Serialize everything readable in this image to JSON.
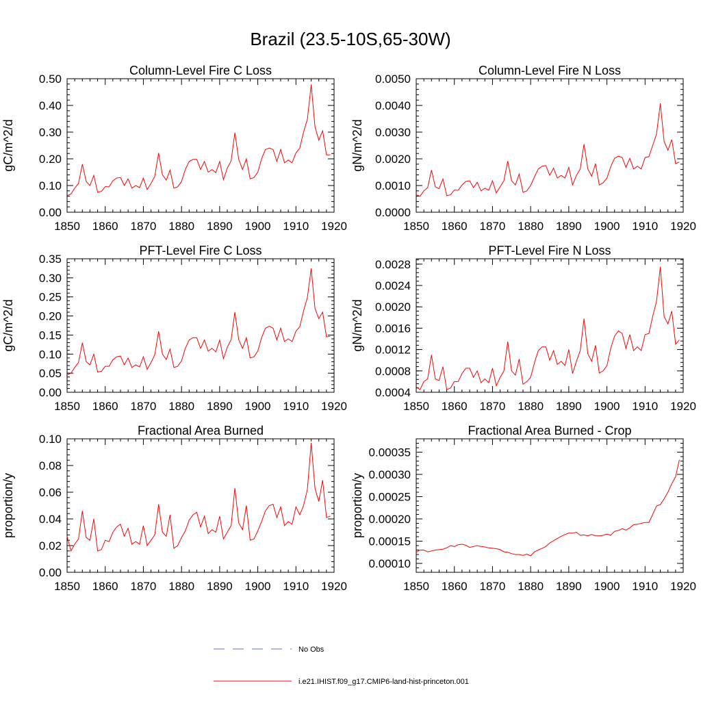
{
  "figure": {
    "title": "Brazil (23.5-10S,65-30W)",
    "series_color": "#ff0000",
    "obs_color": "#5b6fcf"
  },
  "legend": {
    "obs_label": "No Obs",
    "model_label": "i.e21.IHIST.f09_g17.CMIP6-land-hist-princeton.001"
  },
  "chart_data": [
    {
      "type": "line",
      "title": "Column-Level Fire C Loss",
      "ylabel": "gC/m^2/d",
      "xlim": [
        1850,
        1920
      ],
      "ylim": [
        0,
        0.5
      ],
      "x_ticks": [
        1850,
        1860,
        1870,
        1880,
        1890,
        1900,
        1910,
        1920
      ],
      "x_tick_labels": [
        "1850",
        "1860",
        "1870",
        "1880",
        "1890",
        "1900",
        "1910",
        "1920"
      ],
      "y_ticks": [
        0,
        0.1,
        0.2,
        0.3,
        0.4,
        0.5
      ],
      "y_tick_labels": [
        "0.00",
        "0.10",
        "0.20",
        "0.30",
        "0.40",
        "0.50"
      ],
      "series": [
        {
          "x0": 1850,
          "values": [
            0.062,
            0.068,
            0.09,
            0.108,
            0.18,
            0.115,
            0.1,
            0.138,
            0.075,
            0.078,
            0.096,
            0.095,
            0.118,
            0.128,
            0.13,
            0.1,
            0.125,
            0.09,
            0.1,
            0.092,
            0.128,
            0.085,
            0.108,
            0.135,
            0.222,
            0.14,
            0.12,
            0.158,
            0.09,
            0.095,
            0.115,
            0.16,
            0.19,
            0.198,
            0.198,
            0.16,
            0.19,
            0.15,
            0.16,
            0.148,
            0.19,
            0.122,
            0.165,
            0.192,
            0.298,
            0.198,
            0.16,
            0.2,
            0.125,
            0.13,
            0.15,
            0.2,
            0.235,
            0.24,
            0.235,
            0.19,
            0.235,
            0.185,
            0.195,
            0.185,
            0.222,
            0.24,
            0.3,
            0.348,
            0.478,
            0.32,
            0.27,
            0.305,
            0.215,
            0.215
          ]
        }
      ]
    },
    {
      "type": "line",
      "title": "Column-Level Fire N Loss",
      "ylabel": "gN/m^2/d",
      "xlim": [
        1850,
        1920
      ],
      "ylim": [
        0,
        0.005
      ],
      "x_ticks": [
        1850,
        1860,
        1870,
        1880,
        1890,
        1900,
        1910,
        1920
      ],
      "x_tick_labels": [
        "1850",
        "1860",
        "1870",
        "1880",
        "1890",
        "1900",
        "1910",
        "1920"
      ],
      "y_ticks": [
        0,
        0.001,
        0.002,
        0.003,
        0.004,
        0.005
      ],
      "y_tick_labels": [
        "0.0000",
        "0.0010",
        "0.0020",
        "0.0030",
        "0.0040",
        "0.0050"
      ],
      "series": [
        {
          "x0": 1850,
          "values": [
            0.00065,
            0.0006,
            0.0008,
            0.00092,
            0.00158,
            0.00095,
            0.00088,
            0.00125,
            0.00062,
            0.00065,
            0.00083,
            0.00082,
            0.00102,
            0.00115,
            0.00118,
            0.00092,
            0.00112,
            0.0008,
            0.0009,
            0.00082,
            0.00118,
            0.00072,
            0.00095,
            0.00118,
            0.00192,
            0.00118,
            0.00102,
            0.00143,
            0.00075,
            0.0008,
            0.001,
            0.00132,
            0.00162,
            0.00172,
            0.00175,
            0.00138,
            0.00165,
            0.00128,
            0.00138,
            0.00128,
            0.00168,
            0.00102,
            0.00138,
            0.00162,
            0.00255,
            0.00162,
            0.00135,
            0.00182,
            0.00102,
            0.0011,
            0.00128,
            0.0017,
            0.00202,
            0.0021,
            0.00205,
            0.00168,
            0.00202,
            0.00162,
            0.00172,
            0.00162,
            0.00205,
            0.00208,
            0.0025,
            0.00292,
            0.00408,
            0.00265,
            0.00232,
            0.00272,
            0.00182,
            0.00188
          ]
        }
      ]
    },
    {
      "type": "line",
      "title": "PFT-Level Fire C Loss",
      "ylabel": "gC/m^2/d",
      "xlim": [
        1850,
        1920
      ],
      "ylim": [
        0,
        0.35
      ],
      "x_ticks": [
        1850,
        1860,
        1870,
        1880,
        1890,
        1900,
        1910,
        1920
      ],
      "x_tick_labels": [
        "1850",
        "1860",
        "1870",
        "1880",
        "1890",
        "1900",
        "1910",
        "1920"
      ],
      "y_ticks": [
        0,
        0.05,
        0.1,
        0.15,
        0.2,
        0.25,
        0.3,
        0.35
      ],
      "y_tick_labels": [
        "0.00",
        "0.05",
        "0.10",
        "0.15",
        "0.20",
        "0.25",
        "0.30",
        "0.35"
      ],
      "series": [
        {
          "x0": 1850,
          "values": [
            0.045,
            0.05,
            0.065,
            0.078,
            0.13,
            0.08,
            0.072,
            0.1,
            0.053,
            0.055,
            0.068,
            0.068,
            0.085,
            0.093,
            0.095,
            0.072,
            0.09,
            0.065,
            0.072,
            0.066,
            0.093,
            0.06,
            0.078,
            0.098,
            0.16,
            0.1,
            0.086,
            0.113,
            0.065,
            0.068,
            0.082,
            0.115,
            0.137,
            0.143,
            0.143,
            0.115,
            0.137,
            0.108,
            0.115,
            0.106,
            0.137,
            0.088,
            0.118,
            0.138,
            0.21,
            0.138,
            0.115,
            0.143,
            0.09,
            0.093,
            0.108,
            0.143,
            0.168,
            0.173,
            0.168,
            0.137,
            0.168,
            0.133,
            0.14,
            0.133,
            0.16,
            0.172,
            0.213,
            0.248,
            0.325,
            0.22,
            0.193,
            0.21,
            0.145,
            0.147
          ]
        }
      ]
    },
    {
      "type": "line",
      "title": "PFT-Level Fire N Loss",
      "ylabel": "gN/m^2/d",
      "xlim": [
        1850,
        1920
      ],
      "ylim": [
        0.0004,
        0.0029
      ],
      "x_ticks": [
        1850,
        1860,
        1870,
        1880,
        1890,
        1900,
        1910,
        1920
      ],
      "x_tick_labels": [
        "1850",
        "1860",
        "1870",
        "1880",
        "1890",
        "1900",
        "1910",
        "1920"
      ],
      "y_ticks": [
        0.0004,
        0.0008,
        0.0012,
        0.0016,
        0.002,
        0.0024,
        0.0028
      ],
      "y_tick_labels": [
        "0.0004",
        "0.0008",
        "0.0012",
        "0.0016",
        "0.0020",
        "0.0024",
        "0.0028"
      ],
      "series": [
        {
          "x0": 1850,
          "values": [
            0.0005,
            0.00045,
            0.0006,
            0.00065,
            0.0011,
            0.00065,
            0.00062,
            0.00088,
            0.00045,
            0.00048,
            0.0006,
            0.0006,
            0.00075,
            0.00085,
            0.00085,
            0.00068,
            0.0008,
            0.00058,
            0.00065,
            0.00058,
            0.00085,
            0.00052,
            0.00068,
            0.0008,
            0.00135,
            0.0008,
            0.00072,
            0.00102,
            0.00055,
            0.0006,
            0.00068,
            0.00095,
            0.00118,
            0.00125,
            0.00125,
            0.001,
            0.00118,
            0.00092,
            0.00098,
            0.0009,
            0.0012,
            0.00075,
            0.00098,
            0.00118,
            0.00178,
            0.00112,
            0.00098,
            0.00128,
            0.00076,
            0.0008,
            0.0009,
            0.00122,
            0.00145,
            0.00155,
            0.0015,
            0.00122,
            0.00148,
            0.00118,
            0.00125,
            0.00118,
            0.00148,
            0.0015,
            0.00182,
            0.0021,
            0.00275,
            0.00182,
            0.00168,
            0.00192,
            0.0013,
            0.00138
          ]
        }
      ]
    },
    {
      "type": "line",
      "title": "Fractional Area Burned",
      "ylabel": "proportion/y",
      "xlim": [
        1850,
        1920
      ],
      "ylim": [
        0,
        0.1
      ],
      "x_ticks": [
        1850,
        1860,
        1870,
        1880,
        1890,
        1900,
        1910,
        1920
      ],
      "x_tick_labels": [
        "1850",
        "1860",
        "1870",
        "1880",
        "1890",
        "1900",
        "1910",
        "1920"
      ],
      "y_ticks": [
        0,
        0.02,
        0.04,
        0.06,
        0.08,
        0.1
      ],
      "y_tick_labels": [
        "0.00",
        "0.02",
        "0.04",
        "0.06",
        "0.08",
        "0.10"
      ],
      "series": [
        {
          "x0": 1850,
          "values": [
            0.027,
            0.016,
            0.021,
            0.025,
            0.046,
            0.026,
            0.024,
            0.04,
            0.016,
            0.017,
            0.024,
            0.023,
            0.03,
            0.034,
            0.036,
            0.027,
            0.033,
            0.021,
            0.023,
            0.021,
            0.035,
            0.02,
            0.024,
            0.028,
            0.051,
            0.03,
            0.027,
            0.043,
            0.018,
            0.02,
            0.026,
            0.031,
            0.039,
            0.043,
            0.045,
            0.034,
            0.042,
            0.029,
            0.032,
            0.03,
            0.042,
            0.025,
            0.03,
            0.035,
            0.063,
            0.037,
            0.032,
            0.05,
            0.024,
            0.025,
            0.031,
            0.038,
            0.046,
            0.05,
            0.051,
            0.041,
            0.049,
            0.035,
            0.038,
            0.036,
            0.049,
            0.043,
            0.05,
            0.062,
            0.097,
            0.063,
            0.053,
            0.069,
            0.041,
            0.042
          ]
        }
      ]
    },
    {
      "type": "line",
      "title": "Fractional Area Burned - Crop",
      "ylabel": "proportion/y",
      "xlim": [
        1850,
        1920
      ],
      "ylim": [
        8e-05,
        0.00038
      ],
      "x_ticks": [
        1850,
        1860,
        1870,
        1880,
        1890,
        1900,
        1910,
        1920
      ],
      "x_tick_labels": [
        "1850",
        "1860",
        "1870",
        "1880",
        "1890",
        "1900",
        "1910",
        "1920"
      ],
      "y_ticks": [
        0.0001,
        0.00015,
        0.0002,
        0.00025,
        0.0003,
        0.00035
      ],
      "y_tick_labels": [
        "0.00010",
        "0.00015",
        "0.00020",
        "0.00025",
        "0.00030",
        "0.00035"
      ],
      "series": [
        {
          "x0": 1850,
          "values": [
            0.000125,
            0.00013,
            0.00013,
            0.000126,
            0.000128,
            0.00013,
            0.000131,
            0.000132,
            0.000135,
            0.00014,
            0.000138,
            0.000142,
            0.000143,
            0.000141,
            0.000136,
            0.000138,
            0.00014,
            0.000138,
            0.000137,
            0.000135,
            0.000134,
            0.000133,
            0.000131,
            0.000126,
            0.000125,
            0.000122,
            0.00012,
            0.00012,
            0.000118,
            0.000121,
            0.000117,
            0.000126,
            0.00013,
            0.000134,
            0.000138,
            0.000146,
            0.000151,
            0.000156,
            0.000161,
            0.000165,
            0.000168,
            0.000168,
            0.00017,
            0.000163,
            0.000164,
            0.000162,
            0.000165,
            0.000162,
            0.000162,
            0.000163,
            0.000166,
            0.000163,
            0.000172,
            0.000174,
            0.000178,
            0.000175,
            0.00018,
            0.000187,
            0.000188,
            0.00019,
            0.000192,
            0.000192,
            0.00021,
            0.000229,
            0.000232,
            0.000245,
            0.00026,
            0.000279,
            0.000295,
            0.000333
          ]
        }
      ]
    }
  ]
}
